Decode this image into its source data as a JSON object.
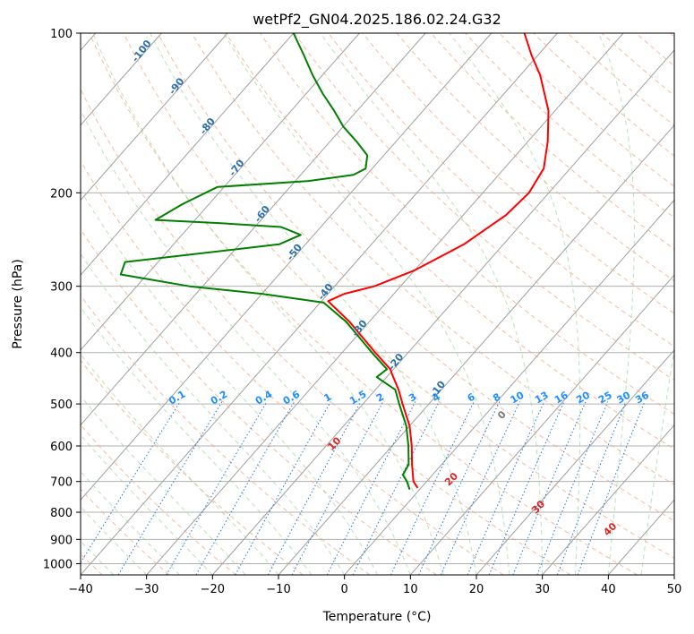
{
  "chart_data": {
    "type": "line",
    "title": "wetPf2_GN04.2025.186.02.24.G32",
    "xlabel": "Temperature (°C)",
    "ylabel": "Pressure (hPa)",
    "xlim": [
      -40,
      50
    ],
    "ylim": [
      1050,
      100
    ],
    "y_scale": "log",
    "skew": true,
    "grid": true,
    "x_ticks": [
      -40,
      -30,
      -20,
      -10,
      0,
      10,
      20,
      30,
      40,
      50
    ],
    "y_ticks": [
      1000,
      900,
      800,
      700,
      600,
      500,
      400,
      300,
      200,
      100
    ],
    "series": [
      {
        "color": "#ff0000",
        "data": [
          {
            "p": 720,
            "t": -0.5
          },
          {
            "p": 700,
            "t": -2.0
          },
          {
            "p": 650,
            "t": -4.5
          },
          {
            "p": 600,
            "t": -7.0
          },
          {
            "p": 550,
            "t": -10.0
          },
          {
            "p": 500,
            "t": -14.0
          },
          {
            "p": 470,
            "t": -16.5
          },
          {
            "p": 440,
            "t": -19.5
          },
          {
            "p": 430,
            "t": -20.5
          },
          {
            "p": 400,
            "t": -25.0
          },
          {
            "p": 350,
            "t": -33.0
          },
          {
            "p": 320,
            "t": -39.0
          },
          {
            "p": 310,
            "t": -37.5
          },
          {
            "p": 300,
            "t": -34.0
          },
          {
            "p": 280,
            "t": -30.0
          },
          {
            "p": 250,
            "t": -26.0
          },
          {
            "p": 220,
            "t": -23.5
          },
          {
            "p": 200,
            "t": -23.0
          },
          {
            "p": 180,
            "t": -24.0
          },
          {
            "p": 160,
            "t": -27.0
          },
          {
            "p": 140,
            "t": -31.0
          },
          {
            "p": 120,
            "t": -37.0
          },
          {
            "p": 110,
            "t": -41.0
          },
          {
            "p": 100,
            "t": -45.0
          }
        ]
      },
      {
        "color": "#008000",
        "data": [
          {
            "p": 725,
            "t": -1.5
          },
          {
            "p": 700,
            "t": -3.0
          },
          {
            "p": 680,
            "t": -4.5
          },
          {
            "p": 650,
            "t": -5.0
          },
          {
            "p": 600,
            "t": -7.5
          },
          {
            "p": 550,
            "t": -10.5
          },
          {
            "p": 500,
            "t": -14.5
          },
          {
            "p": 470,
            "t": -17.0
          },
          {
            "p": 445,
            "t": -21.5
          },
          {
            "p": 430,
            "t": -21.0
          },
          {
            "p": 400,
            "t": -25.5
          },
          {
            "p": 350,
            "t": -33.5
          },
          {
            "p": 322,
            "t": -39.5
          },
          {
            "p": 310,
            "t": -50.0
          },
          {
            "p": 300,
            "t": -62.0
          },
          {
            "p": 290,
            "t": -70.0
          },
          {
            "p": 285,
            "t": -74.0
          },
          {
            "p": 270,
            "t": -75.0
          },
          {
            "p": 250,
            "t": -54.0
          },
          {
            "p": 240,
            "t": -52.0
          },
          {
            "p": 232,
            "t": -56.0
          },
          {
            "p": 228,
            "t": -66.0
          },
          {
            "p": 225,
            "t": -76.0
          },
          {
            "p": 210,
            "t": -74.0
          },
          {
            "p": 195,
            "t": -71.0
          },
          {
            "p": 190,
            "t": -58.0
          },
          {
            "p": 185,
            "t": -52.0
          },
          {
            "p": 180,
            "t": -51.0
          },
          {
            "p": 170,
            "t": -52.5
          },
          {
            "p": 160,
            "t": -56.0
          },
          {
            "p": 150,
            "t": -60.0
          },
          {
            "p": 140,
            "t": -63.5
          },
          {
            "p": 130,
            "t": -67.5
          },
          {
            "p": 120,
            "t": -71.5
          },
          {
            "p": 110,
            "t": -75.5
          },
          {
            "p": 100,
            "t": -80.0
          }
        ]
      }
    ],
    "dry_adiabat_labels": [
      {
        "label": "-100",
        "t": -100,
        "p": 109
      },
      {
        "label": "-90",
        "t": -90,
        "p": 127
      },
      {
        "label": "-80",
        "t": -80,
        "p": 151
      },
      {
        "label": "-70",
        "t": -70,
        "p": 181
      },
      {
        "label": "-60",
        "t": -60,
        "p": 221
      },
      {
        "label": "-50",
        "t": -50,
        "p": 261
      },
      {
        "label": "-40",
        "t": -40,
        "p": 310
      },
      {
        "label": "-30",
        "t": -30,
        "p": 363
      },
      {
        "label": "-20",
        "t": -20,
        "p": 420
      },
      {
        "label": "-10",
        "t": -10,
        "p": 473
      }
    ],
    "mixing_ratio_labels": [
      "0.1",
      "0.2",
      "0.4",
      "0.6",
      "1",
      "1.5",
      "2",
      "3",
      "4",
      "6",
      "8",
      "10",
      "13",
      "16",
      "20",
      "25",
      "30",
      "36"
    ],
    "moist_adiabat_labels": [
      "0",
      "10",
      "20",
      "30",
      "40"
    ]
  }
}
